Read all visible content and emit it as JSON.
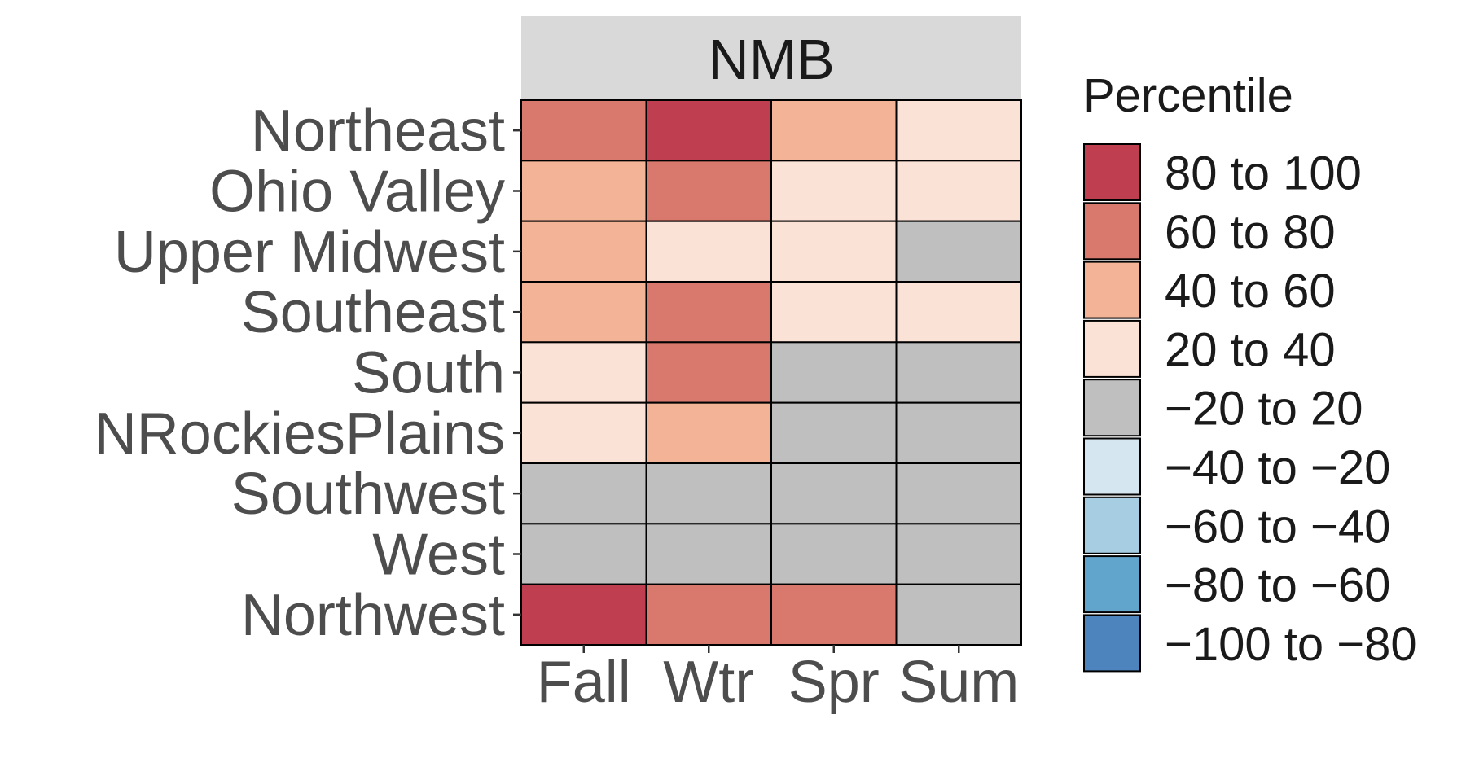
{
  "chart_data": {
    "type": "heatmap",
    "panel_title": "NMB",
    "x_categories": [
      "Fall",
      "Wtr",
      "Spr",
      "Sum"
    ],
    "y_categories": [
      "Northeast",
      "Ohio Valley",
      "Upper Midwest",
      "Southeast",
      "South",
      "NRockiesPlains",
      "Southwest",
      "West",
      "Northwest"
    ],
    "cells": [
      [
        "60 to 80",
        "80 to 100",
        "40 to 60",
        "20 to 40"
      ],
      [
        "40 to 60",
        "60 to 80",
        "20 to 40",
        "20 to 40"
      ],
      [
        "40 to 60",
        "20 to 40",
        "20 to 40",
        "−20 to 20"
      ],
      [
        "40 to 60",
        "60 to 80",
        "20 to 40",
        "20 to 40"
      ],
      [
        "20 to 40",
        "60 to 80",
        "−20 to 20",
        "−20 to 20"
      ],
      [
        "20 to 40",
        "40 to 60",
        "−20 to 20",
        "−20 to 20"
      ],
      [
        "−20 to 20",
        "−20 to 20",
        "−20 to 20",
        "−20 to 20"
      ],
      [
        "−20 to 20",
        "−20 to 20",
        "−20 to 20",
        "−20 to 20"
      ],
      [
        "80 to 100",
        "60 to 80",
        "60 to 80",
        "−20 to 20"
      ]
    ],
    "legend": {
      "title": "Percentile",
      "placement": "right",
      "items": [
        {
          "label": "80 to 100",
          "color": "#bf3f50"
        },
        {
          "label": "60 to 80",
          "color": "#d9786c"
        },
        {
          "label": "40 to 60",
          "color": "#f2b397"
        },
        {
          "label": "20 to 40",
          "color": "#fbe2d6"
        },
        {
          "label": "−20 to 20",
          "color": "#bfbfbf"
        },
        {
          "label": "−40 to −20",
          "color": "#d6e6f0"
        },
        {
          "label": "−60 to −40",
          "color": "#a6cde2"
        },
        {
          "label": "−80 to −60",
          "color": "#62a5cc"
        },
        {
          "label": "−100 to −80",
          "color": "#4d84bd"
        }
      ]
    },
    "strip_color": "#d9d9d9",
    "grid": false
  }
}
